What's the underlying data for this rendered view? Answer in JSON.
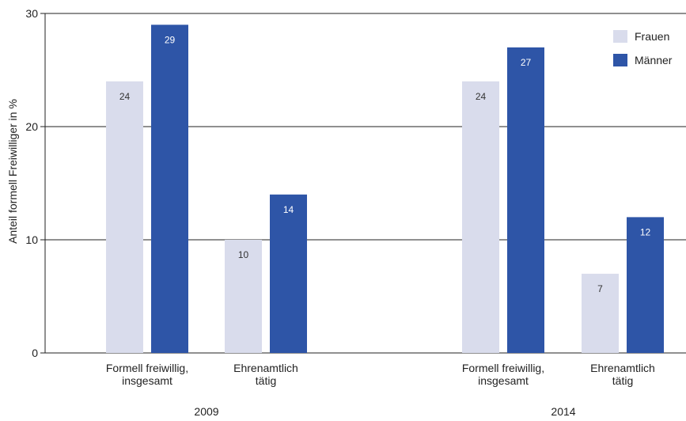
{
  "chart_data": {
    "type": "bar",
    "ylabel": "Anteil formell Freiwilliger in %",
    "ylim": [
      0,
      30
    ],
    "yticks": [
      "0",
      "10",
      "20",
      "30"
    ],
    "grid": true,
    "legend_position": "top-right",
    "series": [
      {
        "name": "Frauen",
        "color": "#d9dcec",
        "label_color": "#333333"
      },
      {
        "name": "Männer",
        "color": "#2e55a7",
        "label_color": "#ffffff"
      }
    ],
    "groups": [
      {
        "label": "2009",
        "categories": [
          {
            "label_lines": [
              "Formell freiwillig,",
              "insgesamt"
            ],
            "values": [
              24,
              29
            ]
          },
          {
            "label_lines": [
              "Ehrenamtlich",
              "tätig"
            ],
            "values": [
              10,
              14
            ]
          }
        ]
      },
      {
        "label": "2014",
        "categories": [
          {
            "label_lines": [
              "Formell freiwillig,",
              "insgesamt"
            ],
            "values": [
              24,
              27
            ]
          },
          {
            "label_lines": [
              "Ehrenamtlich",
              "tätig"
            ],
            "values": [
              7,
              12
            ]
          }
        ]
      }
    ]
  }
}
